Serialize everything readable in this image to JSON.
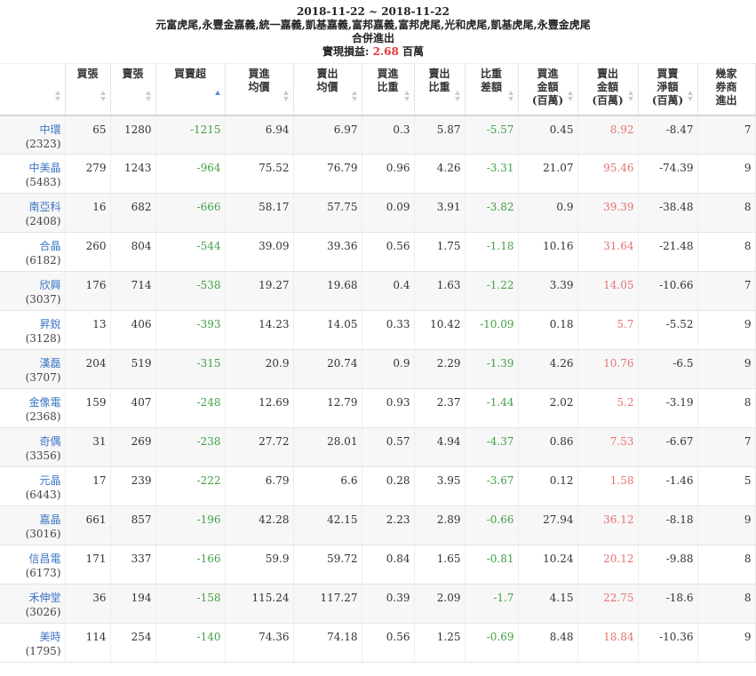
{
  "header": {
    "date_range": "2018-11-22 ~ 2018-11-22",
    "brokers": "元富虎尾,永豐金嘉義,統一嘉義,凱基嘉義,富邦嘉義,富邦虎尾,光和虎尾,凱基虎尾,永豐金虎尾",
    "title": "合併進出",
    "pnl_label": "實現損益: ",
    "pnl_value": "2.68",
    "pnl_unit": " 百萬"
  },
  "columns": [
    {
      "label": "",
      "sort": "none"
    },
    {
      "label": "買張",
      "sort": "none"
    },
    {
      "label": "賣張",
      "sort": "none"
    },
    {
      "label": "買賣超",
      "sort": "asc"
    },
    {
      "label": "買進\n均價",
      "sort": "none"
    },
    {
      "label": "賣出\n均價",
      "sort": "none"
    },
    {
      "label": "買進\n比重",
      "sort": "none"
    },
    {
      "label": "賣出\n比重",
      "sort": "none"
    },
    {
      "label": "比重\n差額",
      "sort": "none"
    },
    {
      "label": "買進\n金額\n(百萬)",
      "sort": "none"
    },
    {
      "label": "賣出\n金額\n(百萬)",
      "sort": "none"
    },
    {
      "label": "買賣\n淨額\n(百萬)",
      "sort": "none"
    },
    {
      "label": "幾家\n券商\n進出",
      "sort": "none"
    }
  ],
  "rows": [
    {
      "name": "中環",
      "code": "(2323)",
      "buy": "65",
      "sell": "1280",
      "net": "-1215",
      "buy_avg": "6.94",
      "sell_avg": "6.97",
      "buy_pct": "0.3",
      "sell_pct": "5.87",
      "pct_diff": "-5.57",
      "buy_amt": "0.45",
      "sell_amt": "8.92",
      "net_amt": "-8.47",
      "brokers": "7"
    },
    {
      "name": "中美晶",
      "code": "(5483)",
      "buy": "279",
      "sell": "1243",
      "net": "-964",
      "buy_avg": "75.52",
      "sell_avg": "76.79",
      "buy_pct": "0.96",
      "sell_pct": "4.26",
      "pct_diff": "-3.31",
      "buy_amt": "21.07",
      "sell_amt": "95.46",
      "net_amt": "-74.39",
      "brokers": "9"
    },
    {
      "name": "南亞科",
      "code": "(2408)",
      "buy": "16",
      "sell": "682",
      "net": "-666",
      "buy_avg": "58.17",
      "sell_avg": "57.75",
      "buy_pct": "0.09",
      "sell_pct": "3.91",
      "pct_diff": "-3.82",
      "buy_amt": "0.9",
      "sell_amt": "39.39",
      "net_amt": "-38.48",
      "brokers": "8"
    },
    {
      "name": "合晶",
      "code": "(6182)",
      "buy": "260",
      "sell": "804",
      "net": "-544",
      "buy_avg": "39.09",
      "sell_avg": "39.36",
      "buy_pct": "0.56",
      "sell_pct": "1.75",
      "pct_diff": "-1.18",
      "buy_amt": "10.16",
      "sell_amt": "31.64",
      "net_amt": "-21.48",
      "brokers": "8"
    },
    {
      "name": "欣興",
      "code": "(3037)",
      "buy": "176",
      "sell": "714",
      "net": "-538",
      "buy_avg": "19.27",
      "sell_avg": "19.68",
      "buy_pct": "0.4",
      "sell_pct": "1.63",
      "pct_diff": "-1.22",
      "buy_amt": "3.39",
      "sell_amt": "14.05",
      "net_amt": "-10.66",
      "brokers": "7"
    },
    {
      "name": "昇銳",
      "code": "(3128)",
      "buy": "13",
      "sell": "406",
      "net": "-393",
      "buy_avg": "14.23",
      "sell_avg": "14.05",
      "buy_pct": "0.33",
      "sell_pct": "10.42",
      "pct_diff": "-10.09",
      "buy_amt": "0.18",
      "sell_amt": "5.7",
      "net_amt": "-5.52",
      "brokers": "9"
    },
    {
      "name": "漢磊",
      "code": "(3707)",
      "buy": "204",
      "sell": "519",
      "net": "-315",
      "buy_avg": "20.9",
      "sell_avg": "20.74",
      "buy_pct": "0.9",
      "sell_pct": "2.29",
      "pct_diff": "-1.39",
      "buy_amt": "4.26",
      "sell_amt": "10.76",
      "net_amt": "-6.5",
      "brokers": "9"
    },
    {
      "name": "金像電",
      "code": "(2368)",
      "buy": "159",
      "sell": "407",
      "net": "-248",
      "buy_avg": "12.69",
      "sell_avg": "12.79",
      "buy_pct": "0.93",
      "sell_pct": "2.37",
      "pct_diff": "-1.44",
      "buy_amt": "2.02",
      "sell_amt": "5.2",
      "net_amt": "-3.19",
      "brokers": "8"
    },
    {
      "name": "奇偶",
      "code": "(3356)",
      "buy": "31",
      "sell": "269",
      "net": "-238",
      "buy_avg": "27.72",
      "sell_avg": "28.01",
      "buy_pct": "0.57",
      "sell_pct": "4.94",
      "pct_diff": "-4.37",
      "buy_amt": "0.86",
      "sell_amt": "7.53",
      "net_amt": "-6.67",
      "brokers": "7"
    },
    {
      "name": "元晶",
      "code": "(6443)",
      "buy": "17",
      "sell": "239",
      "net": "-222",
      "buy_avg": "6.79",
      "sell_avg": "6.6",
      "buy_pct": "0.28",
      "sell_pct": "3.95",
      "pct_diff": "-3.67",
      "buy_amt": "0.12",
      "sell_amt": "1.58",
      "net_amt": "-1.46",
      "brokers": "5"
    },
    {
      "name": "嘉晶",
      "code": "(3016)",
      "buy": "661",
      "sell": "857",
      "net": "-196",
      "buy_avg": "42.28",
      "sell_avg": "42.15",
      "buy_pct": "2.23",
      "sell_pct": "2.89",
      "pct_diff": "-0.66",
      "buy_amt": "27.94",
      "sell_amt": "36.12",
      "net_amt": "-8.18",
      "brokers": "9"
    },
    {
      "name": "信昌電",
      "code": "(6173)",
      "buy": "171",
      "sell": "337",
      "net": "-166",
      "buy_avg": "59.9",
      "sell_avg": "59.72",
      "buy_pct": "0.84",
      "sell_pct": "1.65",
      "pct_diff": "-0.81",
      "buy_amt": "10.24",
      "sell_amt": "20.12",
      "net_amt": "-9.88",
      "brokers": "8"
    },
    {
      "name": "禾伸堂",
      "code": "(3026)",
      "buy": "36",
      "sell": "194",
      "net": "-158",
      "buy_avg": "115.24",
      "sell_avg": "117.27",
      "buy_pct": "0.39",
      "sell_pct": "2.09",
      "pct_diff": "-1.7",
      "buy_amt": "4.15",
      "sell_amt": "22.75",
      "net_amt": "-18.6",
      "brokers": "8"
    },
    {
      "name": "美時",
      "code": "(1795)",
      "buy": "114",
      "sell": "254",
      "net": "-140",
      "buy_avg": "74.36",
      "sell_avg": "74.18",
      "buy_pct": "0.56",
      "sell_pct": "1.25",
      "pct_diff": "-0.69",
      "buy_amt": "8.48",
      "sell_amt": "18.84",
      "net_amt": "-10.36",
      "brokers": "9"
    }
  ],
  "colors": {
    "link": "#3a75c4",
    "negative": "#43a047",
    "sell_amount": "#e57373",
    "pnl": "#e53935"
  }
}
